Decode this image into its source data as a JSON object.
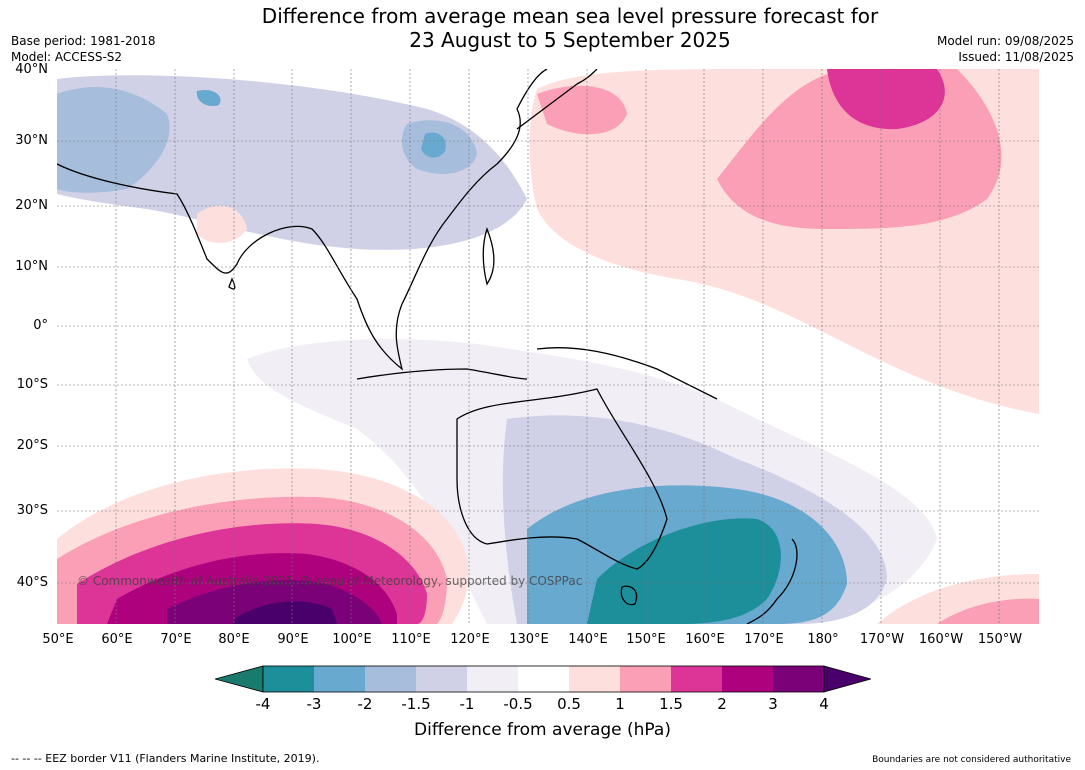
{
  "title_line1": "Difference from average mean sea level pressure forecast for",
  "title_line2": "23 August to 5 September 2025",
  "base_period": "Base period: 1981-2018",
  "model": "Model: ACCESS-S2",
  "model_run": "Model run: 09/08/2025",
  "issued": "Issued: 11/08/2025",
  "lat_labels": [
    "40°N",
    "30°N",
    "20°N",
    "10°N",
    "0°",
    "10°S",
    "20°S",
    "30°S",
    "40°S"
  ],
  "lon_labels": [
    "50°E",
    "60°E",
    "70°E",
    "80°E",
    "90°E",
    "100°E",
    "110°E",
    "120°E",
    "130°E",
    "140°E",
    "150°E",
    "160°E",
    "170°E",
    "180°",
    "170°W",
    "160°W",
    "150°W"
  ],
  "copyright": "© Commonwealth of Australia 2025, Bureau of Meteorology, supported by COSPPac",
  "colorbar": {
    "ticks": [
      "-4",
      "-3",
      "-2",
      "-1.5",
      "-1",
      "-0.5",
      "0.5",
      "1",
      "1.5",
      "2",
      "3",
      "4"
    ],
    "colors": [
      "#1b7a6e",
      "#1c8f9a",
      "#68a9cf",
      "#a6bddb",
      "#d0d1e6",
      "#f1eef6",
      "#ffffff",
      "#fde0dd",
      "#fa9fb5",
      "#dd3497",
      "#ae017e",
      "#7a0177",
      "#49006a"
    ],
    "label": "Difference from average (hPa)"
  },
  "footer_left": "--  --  -- EEZ border V11 (Flanders Marine Institute, 2019).",
  "footer_right": "Boundaries are not considered authoritative"
}
